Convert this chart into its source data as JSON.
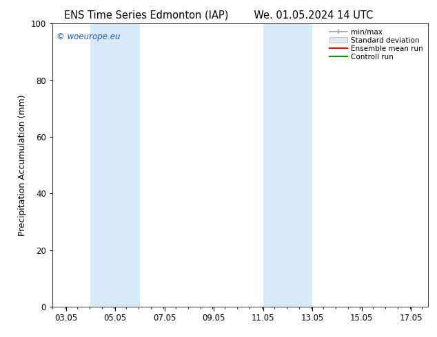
{
  "title_left": "ENS Time Series Edmonton (IAP)",
  "title_right": "We. 01.05.2024 14 UTC",
  "ylabel": "Precipitation Accumulation (mm)",
  "ylim": [
    0,
    100
  ],
  "yticks": [
    0,
    20,
    40,
    60,
    80,
    100
  ],
  "x_min": 2.5,
  "x_max": 17.75,
  "xtick_positions": [
    3.05,
    5.05,
    7.05,
    9.05,
    11.05,
    13.05,
    15.05,
    17.05
  ],
  "xtick_labels": [
    "03.05",
    "05.05",
    "07.05",
    "09.05",
    "11.05",
    "13.05",
    "15.05",
    "17.05"
  ],
  "shaded_bands": [
    {
      "x_start": 4.05,
      "x_end": 6.05,
      "color": "#d8eaf8"
    },
    {
      "x_start": 11.05,
      "x_end": 13.05,
      "color": "#d8eaf8"
    }
  ],
  "watermark_text": "© woeurope.eu",
  "watermark_color": "#1155cc",
  "legend_labels": [
    "min/max",
    "Standard deviation",
    "Ensemble mean run",
    "Controll run"
  ],
  "legend_colors_line": [
    "#999999",
    "#cccccc",
    "#ff0000",
    "#009900"
  ],
  "background_color": "#ffffff",
  "title_fontsize": 10.5,
  "label_fontsize": 9,
  "tick_fontsize": 8.5
}
